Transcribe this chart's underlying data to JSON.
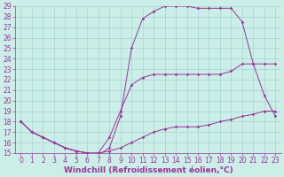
{
  "background_color": "#cceee8",
  "line_color": "#993399",
  "xlabel": "Windchill (Refroidissement éolien,°C)",
  "xlabel_fontsize": 6.5,
  "tick_fontsize": 5.5,
  "xlim": [
    -0.5,
    23.5
  ],
  "ylim": [
    15,
    29
  ],
  "xticks": [
    0,
    1,
    2,
    3,
    4,
    5,
    6,
    7,
    8,
    9,
    10,
    11,
    12,
    13,
    14,
    15,
    16,
    17,
    18,
    19,
    20,
    21,
    22,
    23
  ],
  "yticks": [
    15,
    16,
    17,
    18,
    19,
    20,
    21,
    22,
    23,
    24,
    25,
    26,
    27,
    28,
    29
  ],
  "line1_x": [
    0,
    1,
    2,
    3,
    4,
    5,
    6,
    7,
    8,
    9,
    10,
    11,
    12,
    13,
    14,
    15,
    16,
    17,
    18,
    19,
    20,
    21,
    22,
    23
  ],
  "line1_y": [
    18.0,
    17.0,
    16.5,
    16.0,
    15.5,
    15.2,
    15.0,
    15.0,
    15.2,
    15.5,
    16.0,
    16.5,
    17.0,
    17.3,
    17.5,
    17.5,
    17.5,
    17.7,
    18.0,
    18.2,
    18.5,
    18.7,
    19.0,
    19.0
  ],
  "line2_x": [
    0,
    1,
    2,
    3,
    4,
    5,
    6,
    7,
    8,
    9,
    10,
    11,
    12,
    13,
    14,
    15,
    16,
    17,
    18,
    19,
    20,
    21,
    22,
    23
  ],
  "line2_y": [
    18.0,
    17.0,
    16.5,
    16.0,
    15.5,
    15.2,
    15.0,
    15.0,
    16.5,
    19.0,
    21.5,
    22.2,
    22.5,
    22.5,
    22.5,
    22.5,
    22.5,
    22.5,
    22.5,
    22.8,
    23.5,
    23.5,
    23.5,
    23.5
  ],
  "line3_x": [
    0,
    1,
    2,
    3,
    4,
    5,
    6,
    7,
    8,
    9,
    10,
    11,
    12,
    13,
    14,
    15,
    16,
    17,
    18,
    19,
    20,
    21,
    22,
    23
  ],
  "line3_y": [
    18.0,
    17.0,
    16.5,
    16.0,
    15.5,
    15.2,
    15.0,
    14.8,
    15.5,
    18.5,
    25.0,
    27.8,
    28.5,
    29.0,
    29.0,
    29.0,
    28.8,
    28.8,
    28.8,
    28.8,
    27.5,
    23.5,
    20.5,
    18.5
  ],
  "marker": "D",
  "marker_size": 1.8,
  "linewidth": 0.7,
  "grid_color": "#99cccc",
  "grid_linewidth": 0.4
}
